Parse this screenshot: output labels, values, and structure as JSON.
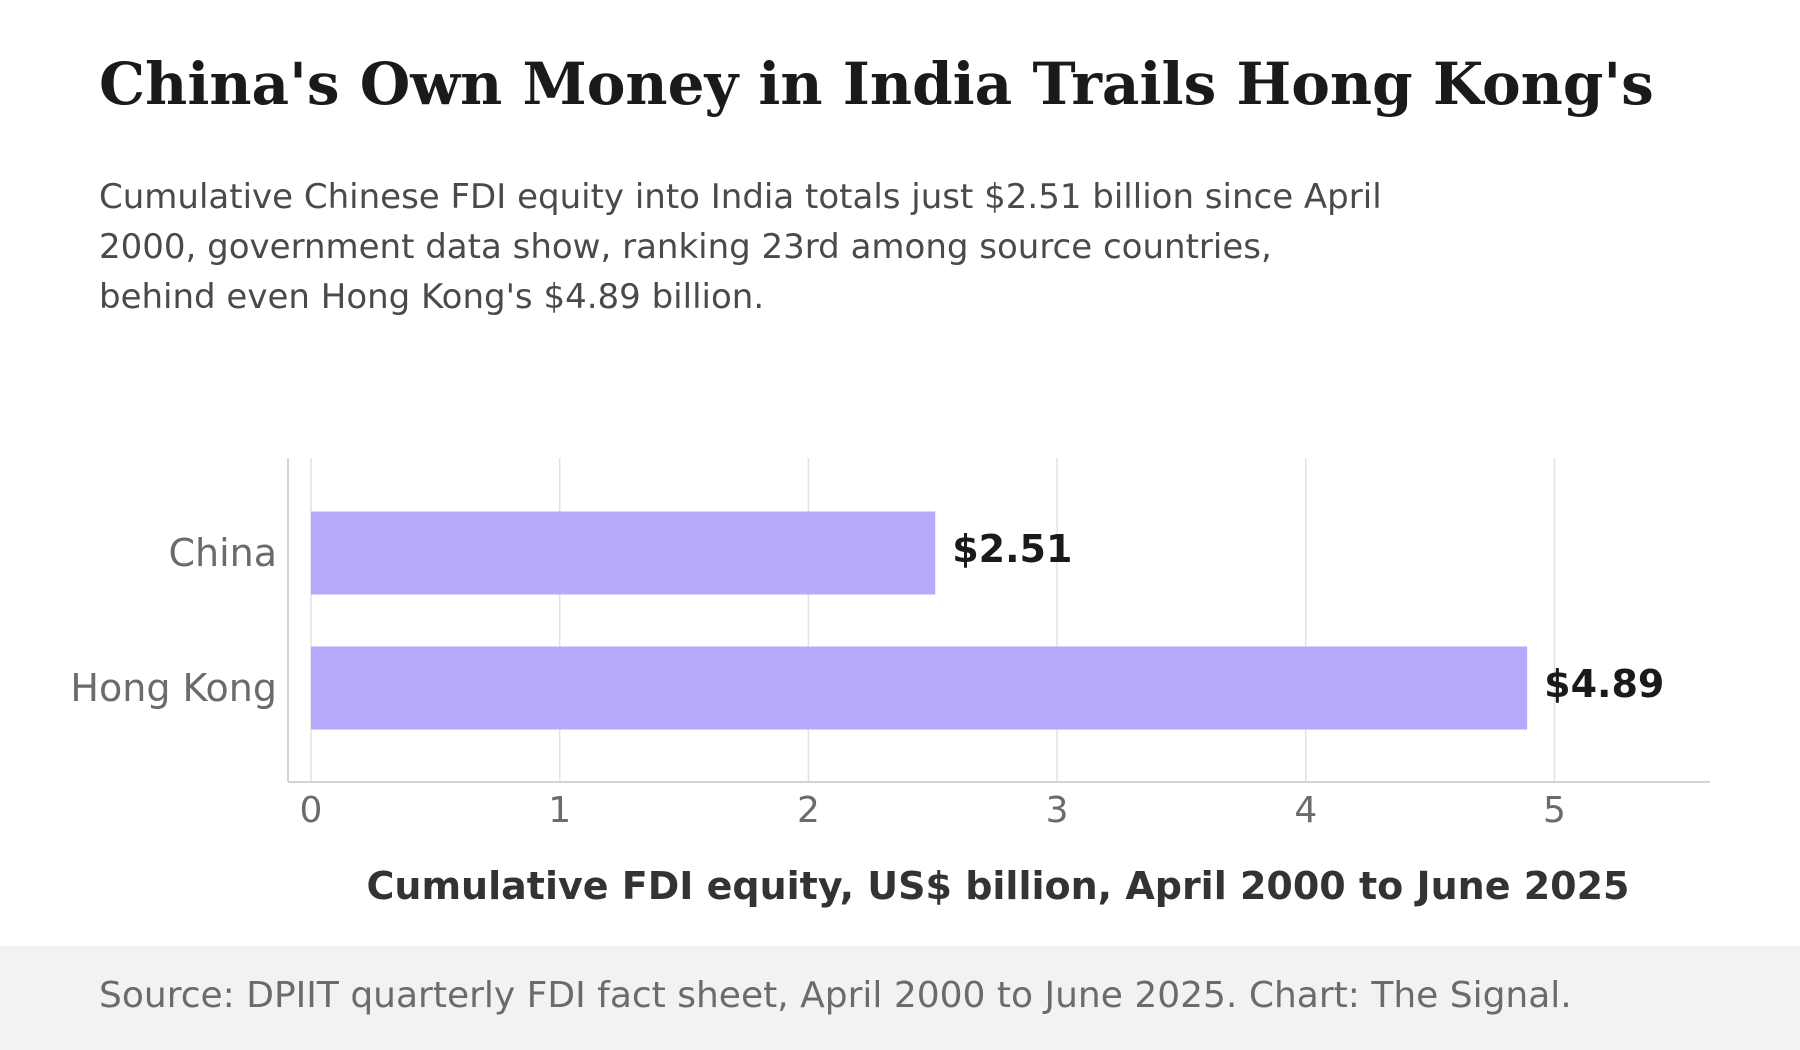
{
  "title": "China's Own Money in India Trails Hong Kong's",
  "subtitle": "Cumulative Chinese FDI equity into India totals just $2.51 billion since April 2000, government data show, ranking 23rd among source countries, behind even Hong Kong's $4.89 billion.",
  "source": "Source: DPIIT quarterly FDI fact sheet, April 2000 to June 2025. Chart: The Signal.",
  "colors": {
    "bar": "#b8a9fc",
    "grid": "#e2e2e2",
    "axis": "#d4d4d4"
  },
  "chart_data": {
    "type": "bar",
    "orientation": "horizontal",
    "categories": [
      "China",
      "Hong Kong"
    ],
    "values": [
      2.51,
      4.89
    ],
    "data_labels": [
      "$2.51",
      "$4.89"
    ],
    "xlabel": "Cumulative FDI equity, US$ billion, April 2000 to June 2025",
    "xticks": [
      "0",
      "1",
      "2",
      "3",
      "4",
      "5"
    ],
    "xlim": [
      0,
      5.5
    ],
    "grid": "vertical"
  }
}
